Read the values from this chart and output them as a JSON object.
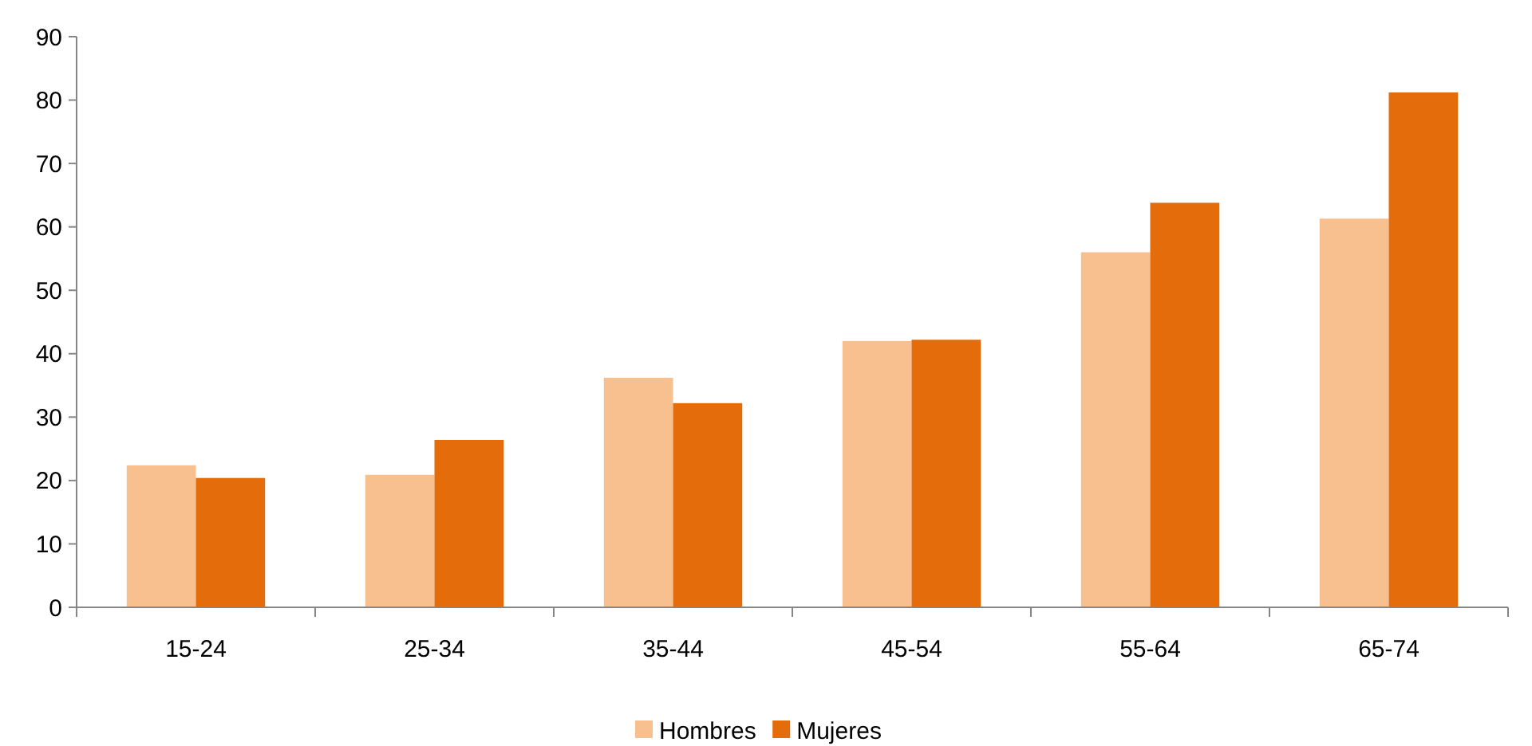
{
  "chart_data": {
    "type": "bar",
    "categories": [
      "15-24",
      "25-34",
      "35-44",
      "45-54",
      "55-64",
      "65-74"
    ],
    "series": [
      {
        "name": "Hombres",
        "color": "#f9c08f",
        "values": [
          22.4,
          20.9,
          36.2,
          42.0,
          56.0,
          61.3
        ]
      },
      {
        "name": "Mujeres",
        "color": "#e46c0a",
        "values": [
          20.4,
          26.4,
          32.2,
          42.2,
          63.8,
          81.2
        ]
      }
    ],
    "ylim": [
      0,
      90
    ],
    "yticks": [
      0,
      10,
      20,
      30,
      40,
      50,
      60,
      70,
      80,
      90
    ],
    "grid": false,
    "legend": "bottom"
  }
}
